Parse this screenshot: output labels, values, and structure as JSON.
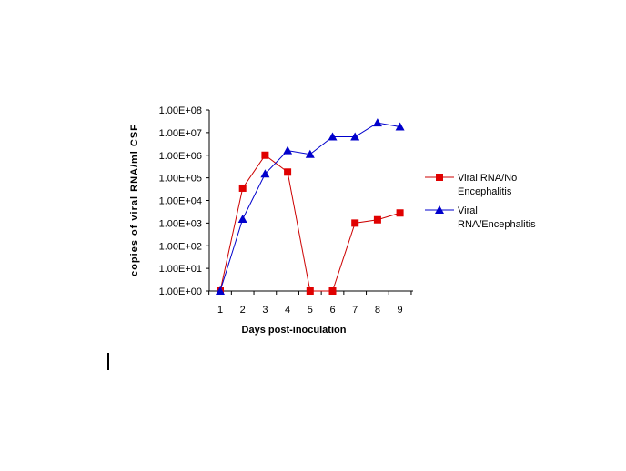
{
  "chart_data": {
    "type": "line",
    "title": "",
    "xlabel": "Days post-inoculation",
    "ylabel": "copies of viral RNA/ml CSF",
    "y_scale": "log",
    "ylim": [
      1,
      100000000
    ],
    "x": [
      1,
      2,
      3,
      4,
      5,
      6,
      7,
      8,
      9
    ],
    "x_tick_labels": [
      "1",
      "2",
      "3",
      "4",
      "5",
      "6",
      "7",
      "8",
      "9"
    ],
    "y_tick_labels": [
      "1.00E+00",
      "1.00E+01",
      "1.00E+02",
      "1.00E+03",
      "1.00E+04",
      "1.00E+05",
      "1.00E+06",
      "1.00E+07",
      "1.00E+08"
    ],
    "grid": false,
    "legend_position": "right",
    "series": [
      {
        "name_lines": [
          "Viral RNA/No",
          "Encephalitis"
        ],
        "color": "#cc0000",
        "marker_color": "#e00000",
        "marker": "square",
        "values": [
          1,
          35000,
          1000000,
          180000,
          1,
          1,
          1000,
          1400,
          2800
        ]
      },
      {
        "name_lines": [
          "Viral",
          "RNA/Encephalitis"
        ],
        "color": "#0000cc",
        "marker_color": "#0000cc",
        "marker": "triangle",
        "values": [
          1,
          1500,
          150000,
          1600000,
          1100000,
          6500000,
          6500000,
          27000000,
          18000000
        ]
      }
    ]
  }
}
